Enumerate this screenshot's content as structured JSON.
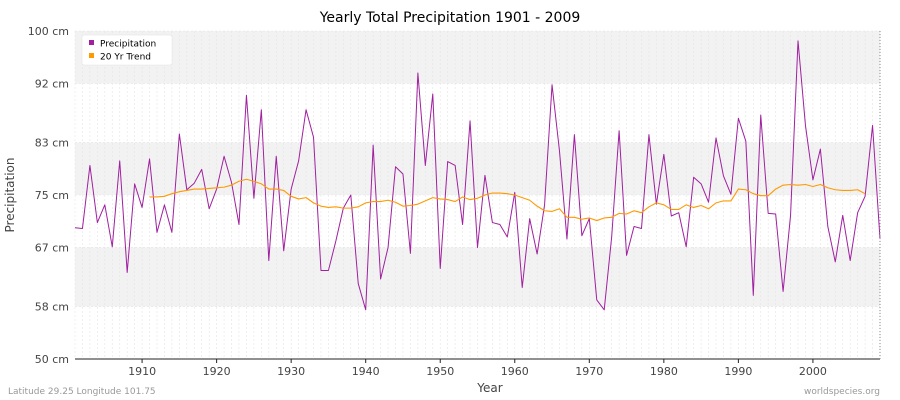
{
  "chart_data": {
    "type": "line",
    "title": "Yearly Total Precipitation 1901 - 2009",
    "xlabel": "Year",
    "ylabel": "Precipitation",
    "xlim": [
      1901,
      2009
    ],
    "ylim": [
      50,
      100
    ],
    "y_ticks": [
      50,
      58,
      67,
      75,
      83,
      92,
      100
    ],
    "y_tick_labels": [
      "50 cm",
      "58 cm",
      "67 cm",
      "75 cm",
      "83 cm",
      "92 cm",
      "100 cm"
    ],
    "x_ticks": [
      1910,
      1920,
      1930,
      1940,
      1950,
      1960,
      1970,
      1980,
      1990,
      2000
    ],
    "x_tick_labels": [
      "1910",
      "1920",
      "1930",
      "1940",
      "1950",
      "1960",
      "1970",
      "1980",
      "1990",
      "2000"
    ],
    "legend": {
      "position": "top-left",
      "entries": [
        "Precipitation",
        "20 Yr Trend"
      ]
    },
    "series": [
      {
        "name": "Precipitation",
        "color": "#a020a0",
        "start_year": 1901,
        "values": [
          70,
          69.9,
          79.5,
          70.8,
          73.5,
          67.1,
          80.2,
          63.2,
          76.7,
          73.1,
          80.5,
          69.3,
          73.5,
          69.3,
          84.3,
          75.8,
          76.8,
          78.9,
          72.9,
          75.9,
          80.9,
          76.9,
          70.5,
          90.2,
          74.5,
          88,
          65,
          80.9,
          66.5,
          75.9,
          80.2,
          88,
          83.8,
          63.5,
          63.5,
          68,
          73,
          75,
          61.5,
          57.5,
          82.6,
          62.2,
          67,
          79.3,
          78.2,
          66.1,
          93.6,
          79.5,
          90.4,
          63.8,
          80.1,
          79.5,
          70.5,
          86.3,
          67,
          78,
          70.8,
          70.5,
          68.6,
          75.4,
          60.9,
          71.4,
          66,
          73.5,
          91.8,
          81.7,
          68.3,
          84.2,
          68.8,
          71.4,
          59,
          57.5,
          68.6,
          84.8,
          65.8,
          70.2,
          69.9,
          84.2,
          73.6,
          81.2,
          71.8,
          72.3,
          67.1,
          77.7,
          76.7,
          73.9,
          83.7,
          77.9,
          75.1,
          86.7,
          83.2,
          59.7,
          87.2,
          72.2,
          72.1,
          60.3,
          71.9,
          98.5,
          85.6,
          77.3,
          82,
          70.2,
          64.8,
          71.9,
          65,
          72.3,
          74.8,
          85.6,
          68.3
        ]
      },
      {
        "name": "20 Yr Trend",
        "color": "#ff9900",
        "start_year": 1911,
        "values": [
          74.7,
          74.7,
          74.8,
          75.2,
          75.5,
          75.7,
          75.9,
          75.9,
          76,
          76.1,
          76.2,
          76.5,
          77.1,
          77.4,
          77.1,
          76.7,
          75.9,
          75.9,
          75.7,
          74.8,
          74.4,
          74.6,
          73.8,
          73.3,
          73.1,
          73.2,
          73,
          73,
          73.2,
          73.8,
          74,
          74,
          74.2,
          73.9,
          73.3,
          73.4,
          73.6,
          74.1,
          74.6,
          74.4,
          74.3,
          74,
          74.7,
          74.3,
          74.5,
          75,
          75.3,
          75.3,
          75.2,
          75,
          74.6,
          74.2,
          73.3,
          72.6,
          72.5,
          72.9,
          71.6,
          71.6,
          71.3,
          71.5,
          71.1,
          71.5,
          71.6,
          72.2,
          72.1,
          72.6,
          72.3,
          73.2,
          73.8,
          73.5,
          72.8,
          72.8,
          73.5,
          73.1,
          73.4,
          72.9,
          73.8,
          74.1,
          74.1,
          75.9,
          75.8,
          75.2,
          74.9,
          74.9,
          75.9,
          76.5,
          76.6,
          76.5,
          76.6,
          76.3,
          76.6,
          76.1,
          75.8,
          75.7,
          75.7,
          75.8,
          75.2
        ]
      }
    ]
  },
  "footer": {
    "location": "Latitude 29.25 Longitude 101.75",
    "source": "worldspecies.org"
  }
}
